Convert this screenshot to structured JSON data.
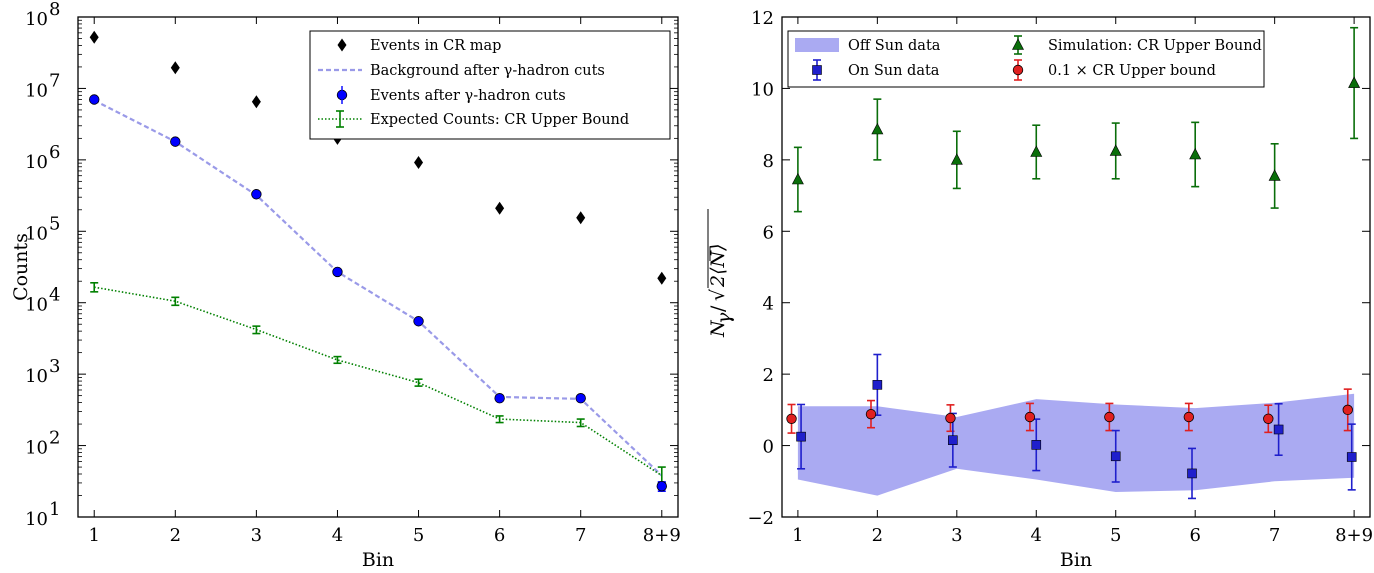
{
  "chart_data": [
    {
      "type": "scatter",
      "ylog": true,
      "categories": [
        "1",
        "2",
        "3",
        "4",
        "5",
        "6",
        "7",
        "8+9"
      ],
      "x_tick_positions": [
        1,
        2,
        3,
        4,
        5,
        6,
        7,
        8
      ],
      "xlim": [
        0.8,
        8.2
      ],
      "ylim": [
        10,
        100000000
      ],
      "xlabel": "Bin",
      "ylabel": "Counts",
      "ytick_labels": [
        {
          "base": "10",
          "exp": "1"
        },
        {
          "base": "10",
          "exp": "2"
        },
        {
          "base": "10",
          "exp": "3"
        },
        {
          "base": "10",
          "exp": "4"
        },
        {
          "base": "10",
          "exp": "5"
        },
        {
          "base": "10",
          "exp": "6"
        },
        {
          "base": "10",
          "exp": "7"
        },
        {
          "base": "10",
          "exp": "8"
        }
      ],
      "legend_position": "top-right",
      "series": [
        {
          "name": "Events in CR map",
          "style": "diamond",
          "color": "#000000",
          "x": [
            1,
            2,
            3,
            4,
            5,
            6,
            7,
            8
          ],
          "y": [
            52000000,
            19500000,
            6500000,
            2000000,
            920000,
            210000,
            155000,
            22000
          ]
        },
        {
          "name": "Background after γ-hadron cuts",
          "style": "dashed-line",
          "color": "#9a9ae8",
          "x": [
            1,
            2,
            3,
            4,
            5,
            6,
            7,
            8
          ],
          "y": [
            6800000,
            1800000,
            320000,
            27000,
            5500,
            480,
            450,
            38
          ]
        },
        {
          "name": "Events after γ-hadron cuts",
          "style": "circle-errorbar",
          "color": "#0000ff",
          "x": [
            1,
            2,
            3,
            4,
            5,
            6,
            7,
            8
          ],
          "y": [
            7000000,
            1800000,
            330000,
            27000,
            5500,
            460,
            460,
            27
          ],
          "yerr_low": [
            0,
            0,
            0,
            0,
            0,
            0,
            0,
            23
          ],
          "yerr_high": [
            0,
            0,
            0,
            0,
            0,
            0,
            0,
            31
          ]
        },
        {
          "name": "Expected Counts: CR Upper Bound",
          "style": "dotted-errorbar",
          "color": "#008000",
          "x": [
            1,
            2,
            3,
            4,
            5,
            6,
            7,
            8
          ],
          "y": [
            16500,
            10500,
            4200,
            1580,
            760,
            235,
            210,
            38
          ],
          "yerr_low": [
            14200,
            9200,
            3700,
            1420,
            680,
            210,
            185,
            30
          ],
          "yerr_high": [
            19000,
            11900,
            4700,
            1760,
            850,
            260,
            235,
            50
          ]
        }
      ]
    },
    {
      "type": "scatter",
      "categories": [
        "1",
        "2",
        "3",
        "4",
        "5",
        "6",
        "7",
        "8+9"
      ],
      "x_tick_positions": [
        1,
        2,
        3,
        4,
        5,
        6,
        7,
        8
      ],
      "xlim": [
        0.8,
        8.2
      ],
      "ylim": [
        -2,
        12
      ],
      "yticks": [
        -2,
        0,
        2,
        4,
        6,
        8,
        10,
        12
      ],
      "xlabel": "Bin",
      "ylabel": {
        "main": "N",
        "sub": "γ",
        "slash": "/",
        "root": "√",
        "inner": "2⟨N⟩"
      },
      "legend_position": "top",
      "series": [
        {
          "name": "Off Sun data",
          "style": "band",
          "color": "#aaaaf2",
          "x": [
            1,
            2,
            3,
            4,
            5,
            6,
            7,
            8
          ],
          "upper": [
            1.1,
            1.1,
            0.8,
            1.3,
            1.15,
            1.05,
            1.2,
            1.45
          ],
          "lower": [
            -0.95,
            -1.4,
            -0.65,
            -0.95,
            -1.3,
            -1.25,
            -1.0,
            -0.9
          ]
        },
        {
          "name": "On Sun data",
          "style": "square-errorbar",
          "color": "#1f1fcc",
          "x": [
            1.04,
            2.0,
            2.95,
            4.0,
            5.0,
            5.96,
            7.05,
            7.97
          ],
          "y": [
            0.25,
            1.7,
            0.15,
            0.02,
            -0.3,
            -0.78,
            0.45,
            -0.32
          ],
          "yerr": [
            0.9,
            0.85,
            0.75,
            0.72,
            0.72,
            0.7,
            0.72,
            0.92
          ]
        },
        {
          "name": "Simulation: CR Upper Bound",
          "style": "triangle-errorbar",
          "color": "#0a6e0a",
          "x": [
            1,
            2,
            3,
            4,
            5,
            6,
            7,
            8
          ],
          "y": [
            7.45,
            8.85,
            8.0,
            8.22,
            8.25,
            8.15,
            7.55,
            10.15
          ],
          "yerr": [
            0.9,
            0.85,
            0.8,
            0.75,
            0.78,
            0.9,
            0.9,
            1.55
          ]
        },
        {
          "name": "0.1 × CR Upper bound",
          "style": "circle-errorbar",
          "color": "#e02020",
          "x": [
            0.92,
            1.92,
            2.92,
            3.92,
            4.92,
            5.92,
            6.92,
            7.92
          ],
          "y": [
            0.75,
            0.88,
            0.77,
            0.8,
            0.8,
            0.8,
            0.75,
            1.0
          ],
          "yerr": [
            0.4,
            0.38,
            0.37,
            0.38,
            0.38,
            0.38,
            0.38,
            0.58
          ]
        }
      ]
    }
  ]
}
